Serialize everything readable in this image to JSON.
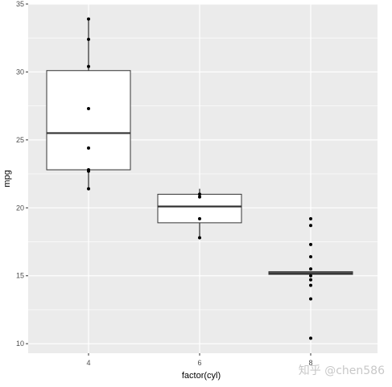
{
  "chart_data": {
    "type": "boxplot",
    "xlabel": "factor(cyl)",
    "ylabel": "mpg",
    "ylim": [
      9.3,
      35.0
    ],
    "y_ticks": [
      10,
      15,
      20,
      25,
      30,
      35
    ],
    "grid": true,
    "legend": "none",
    "categories": [
      "4",
      "6",
      "8"
    ],
    "boxes": [
      {
        "category": "4",
        "q1": 22.8,
        "median": 25.5,
        "q3": 30.1,
        "whisker_low": 21.4,
        "whisker_high": 33.9
      },
      {
        "category": "6",
        "q1": 18.9,
        "median": 20.1,
        "q3": 21.0,
        "whisker_low": 17.8,
        "whisker_high": 21.4
      },
      {
        "category": "8",
        "q1": 15.1,
        "median": 15.2,
        "q3": 15.3,
        "whisker_low": 15.1,
        "whisker_high": 15.3
      }
    ],
    "points": [
      {
        "category": "4",
        "values": [
          33.9,
          32.4,
          30.4,
          27.3,
          24.4,
          22.8,
          22.7,
          21.4
        ]
      },
      {
        "category": "6",
        "values": [
          21.0,
          20.8,
          19.2,
          17.8
        ]
      },
      {
        "category": "8",
        "values": [
          19.2,
          18.7,
          17.3,
          16.4,
          15.5,
          15.0,
          14.7,
          14.3,
          13.3,
          10.4
        ]
      }
    ]
  },
  "watermark": {
    "text": "知乎 @chen586"
  },
  "colors": {
    "panel": "#ebebeb",
    "grid": "#ffffff",
    "box_fill": "#ffffff",
    "ink": "#000000"
  }
}
